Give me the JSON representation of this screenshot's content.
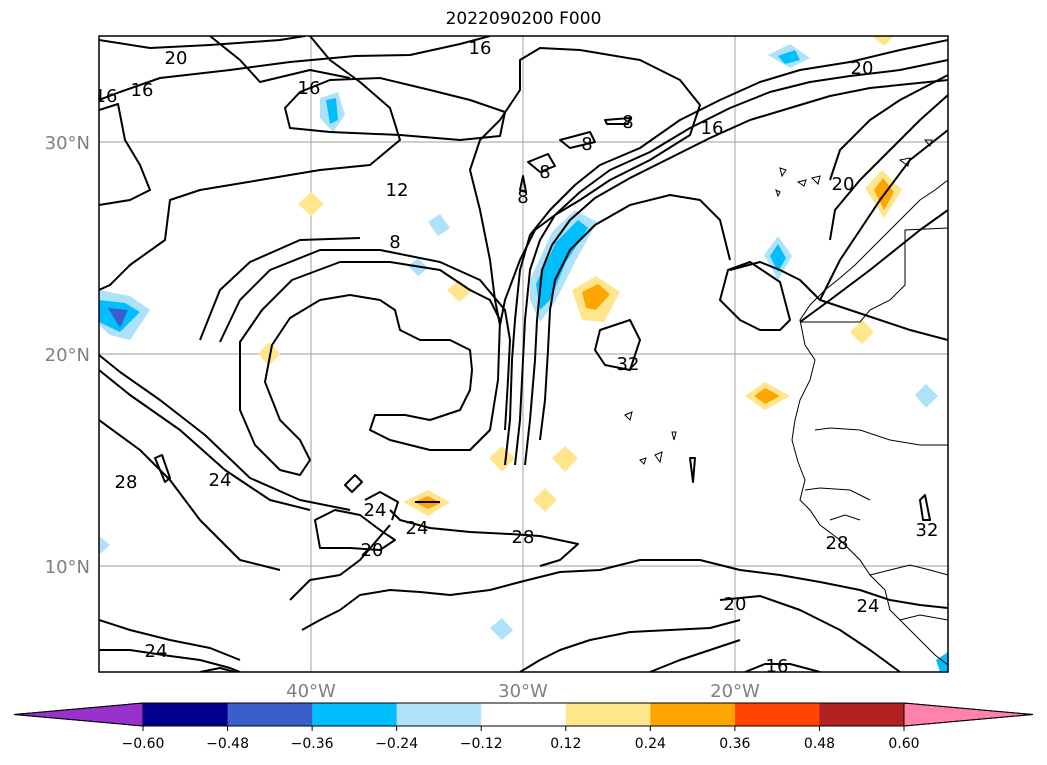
{
  "title": "2022090200 F000",
  "lat_labels": [
    "30°N",
    "20°N",
    "10°N"
  ],
  "lon_labels": [
    "40°W",
    "30°W",
    "20°W"
  ],
  "colorbar": {
    "ticks": [
      "−0.60",
      "−0.48",
      "−0.36",
      "−0.24",
      "−0.12",
      "0.12",
      "0.24",
      "0.36",
      "0.48",
      "0.60"
    ],
    "colors": [
      "#9932cc",
      "#00008b",
      "#3a5fcd",
      "#00bfff",
      "#aee2fa",
      "#ffffff",
      "#ffe68c",
      "#ffa500",
      "#ff4500",
      "#b22222",
      "#ff82ab"
    ],
    "extend": "both"
  },
  "contour_labels": [
    {
      "text": "20"
    },
    {
      "text": "16"
    },
    {
      "text": "16"
    },
    {
      "text": "16"
    },
    {
      "text": "16"
    },
    {
      "text": "20"
    },
    {
      "text": "8"
    },
    {
      "text": "8"
    },
    {
      "text": "16"
    },
    {
      "text": "8"
    },
    {
      "text": "8"
    },
    {
      "text": "12"
    },
    {
      "text": "8"
    },
    {
      "text": "20"
    },
    {
      "text": "32"
    },
    {
      "text": "28"
    },
    {
      "text": "24"
    },
    {
      "text": "24"
    },
    {
      "text": "24"
    },
    {
      "text": "20"
    },
    {
      "text": "28"
    },
    {
      "text": "28"
    },
    {
      "text": "32"
    },
    {
      "text": "20"
    },
    {
      "text": "24"
    },
    {
      "text": "24"
    },
    {
      "text": "16"
    }
  ]
}
